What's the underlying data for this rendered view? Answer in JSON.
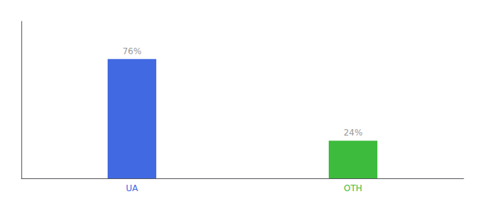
{
  "chart_data": {
    "type": "bar",
    "categories": [
      "UA",
      "OTH"
    ],
    "values": [
      76,
      24
    ],
    "value_labels": [
      "76%",
      "24%"
    ],
    "colors": [
      "#4169e1",
      "#3dbb3d"
    ],
    "ylim": [
      0,
      100
    ],
    "grid": false,
    "data_labels": true,
    "tick_labels": "x"
  }
}
